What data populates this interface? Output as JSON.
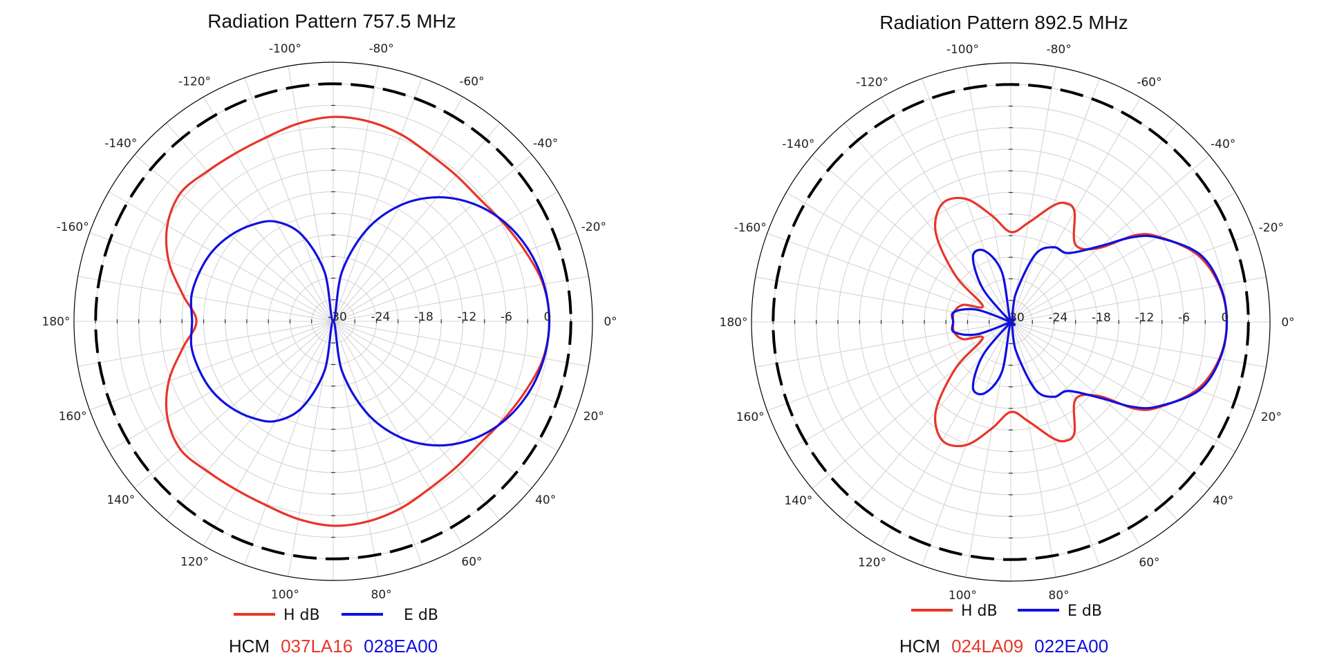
{
  "colors": {
    "h": "#e8352a",
    "e": "#1010e0",
    "ref": "#000000",
    "grid": "#d0d0d0",
    "outline": "#000000"
  },
  "panels": [
    {
      "title": "Radiation Pattern 757.5 MHz",
      "legend": {
        "h_label": "H dB",
        "e_label": "E dB"
      },
      "model": {
        "prefix": "HCM",
        "h_code": "037LA16",
        "e_code": "028EA00"
      }
    },
    {
      "title": "Radiation Pattern 892.5 MHz",
      "legend": {
        "h_label": "H dB",
        "e_label": "E dB"
      },
      "model": {
        "prefix": "HCM",
        "h_code": "024LA09",
        "e_code": "022EA00"
      }
    }
  ],
  "chart_data": [
    {
      "type": "polar-line",
      "title": "Radiation Pattern 757.5 MHz",
      "angle_unit": "degrees",
      "angle_direction": "clockwise, 0° at right (negative angles above)",
      "angle_ticks": [
        "0°",
        "20°",
        "40°",
        "60°",
        "80°",
        "100°",
        "120°",
        "140°",
        "160°",
        "180°",
        "-160°",
        "-140°",
        "-120°",
        "-100°",
        "-80°",
        "-60°",
        "-40°",
        "-20°"
      ],
      "r_range": [
        -30,
        6
      ],
      "r_ticks": [
        -30,
        -24,
        -18,
        -12,
        -6,
        0
      ],
      "r_tick_labels": [
        "-30",
        "-24",
        "-18",
        "-12",
        "-6",
        "0"
      ],
      "reference_circle_db": 3,
      "series": [
        {
          "name": "H dB",
          "angles": [
            0,
            10,
            20,
            30,
            40,
            50,
            60,
            70,
            80,
            90,
            100,
            110,
            120,
            130,
            140,
            150,
            160,
            170,
            180,
            190,
            200,
            210,
            220,
            230,
            240,
            250,
            260,
            270,
            280,
            290,
            300,
            310,
            320,
            330,
            340,
            350
          ],
          "values": [
            0,
            -0.4,
            -1.6,
            -2.7,
            -3.5,
            -3.5,
            -3.2,
            -2.4,
            -1.8,
            -1.6,
            -2.1,
            -2.8,
            -3.0,
            -2.8,
            -2.3,
            -3.4,
            -5.7,
            -8.8,
            -11,
            -8.8,
            -5.7,
            -3.4,
            -2.3,
            -2.8,
            -3.0,
            -2.8,
            -2.1,
            -1.6,
            -1.8,
            -2.4,
            -3.2,
            -3.5,
            -3.5,
            -2.7,
            -1.6,
            -0.4
          ]
        },
        {
          "name": "E dB",
          "angles": [
            0,
            10,
            20,
            30,
            40,
            50,
            60,
            70,
            80,
            90,
            100,
            110,
            120,
            130,
            140,
            150,
            160,
            170,
            180,
            190,
            200,
            210,
            220,
            230,
            240,
            250,
            260,
            270,
            280,
            290,
            300,
            310,
            320,
            330,
            340,
            350
          ],
          "values": [
            0,
            -0.3,
            -1.1,
            -2.5,
            -4.6,
            -7.5,
            -11.4,
            -16.5,
            -23,
            -30,
            -23,
            -17.2,
            -14,
            -12.5,
            -11.4,
            -10.6,
            -10.2,
            -10,
            -10.4,
            -10,
            -10.2,
            -10.6,
            -11.4,
            -12.5,
            -14,
            -17.2,
            -23,
            -30,
            -23,
            -16.5,
            -11.4,
            -7.5,
            -4.6,
            -2.5,
            -1.1,
            -0.3
          ]
        }
      ]
    },
    {
      "type": "polar-line",
      "title": "Radiation Pattern 892.5 MHz",
      "angle_unit": "degrees",
      "angle_direction": "clockwise, 0° at right (negative angles above)",
      "angle_ticks": [
        "0°",
        "20°",
        "40°",
        "60°",
        "80°",
        "100°",
        "120°",
        "140°",
        "160°",
        "180°",
        "-160°",
        "-140°",
        "-120°",
        "-100°",
        "-80°",
        "-60°",
        "-40°",
        "-20°"
      ],
      "r_range": [
        -30,
        6
      ],
      "r_ticks": [
        -30,
        -24,
        -18,
        -12,
        -6,
        0
      ],
      "r_tick_labels": [
        "-30",
        "-24",
        "-18",
        "-12",
        "-6",
        "0"
      ],
      "reference_circle_db": 3,
      "series": [
        {
          "name": "H dB",
          "angles": [
            0,
            10,
            20,
            30,
            35,
            40,
            50,
            60,
            65,
            70,
            80,
            90,
            100,
            110,
            120,
            130,
            140,
            150,
            160,
            170,
            180,
            190,
            200,
            210,
            220,
            230,
            240,
            250,
            260,
            270,
            280,
            290,
            295,
            300,
            310,
            320,
            325,
            330,
            340,
            350
          ],
          "values": [
            0,
            -0.6,
            -2.5,
            -6.3,
            -9,
            -14,
            -16,
            -12.3,
            -11.8,
            -12.8,
            -16,
            -17.5,
            -15,
            -11.8,
            -11,
            -13.8,
            -20,
            -25.5,
            -23,
            -22,
            -22,
            -22,
            -23,
            -25.5,
            -20,
            -13.8,
            -11,
            -11.8,
            -15,
            -17.5,
            -16,
            -12.8,
            -11.8,
            -12.3,
            -16,
            -14,
            -9,
            -6.3,
            -2.5,
            -0.6
          ]
        },
        {
          "name": "E dB",
          "angles": [
            0,
            10,
            20,
            30,
            35,
            40,
            50,
            60,
            70,
            80,
            90,
            100,
            110,
            120,
            130,
            140,
            150,
            160,
            170,
            180,
            190,
            200,
            210,
            220,
            230,
            240,
            250,
            260,
            270,
            280,
            290,
            300,
            310,
            320,
            325,
            330,
            340,
            350
          ],
          "values": [
            0,
            -0.5,
            -2.2,
            -6.5,
            -9.5,
            -13.5,
            -17.5,
            -18,
            -20,
            -26,
            -30,
            -23,
            -19.5,
            -19.5,
            -24,
            -30,
            -30,
            -25,
            -22,
            -22,
            -22,
            -25,
            -30,
            -30,
            -24,
            -19.5,
            -19.5,
            -23,
            -30,
            -26,
            -20,
            -18,
            -17.5,
            -13.5,
            -9.5,
            -6.5,
            -2.2,
            -0.5
          ]
        }
      ]
    }
  ]
}
